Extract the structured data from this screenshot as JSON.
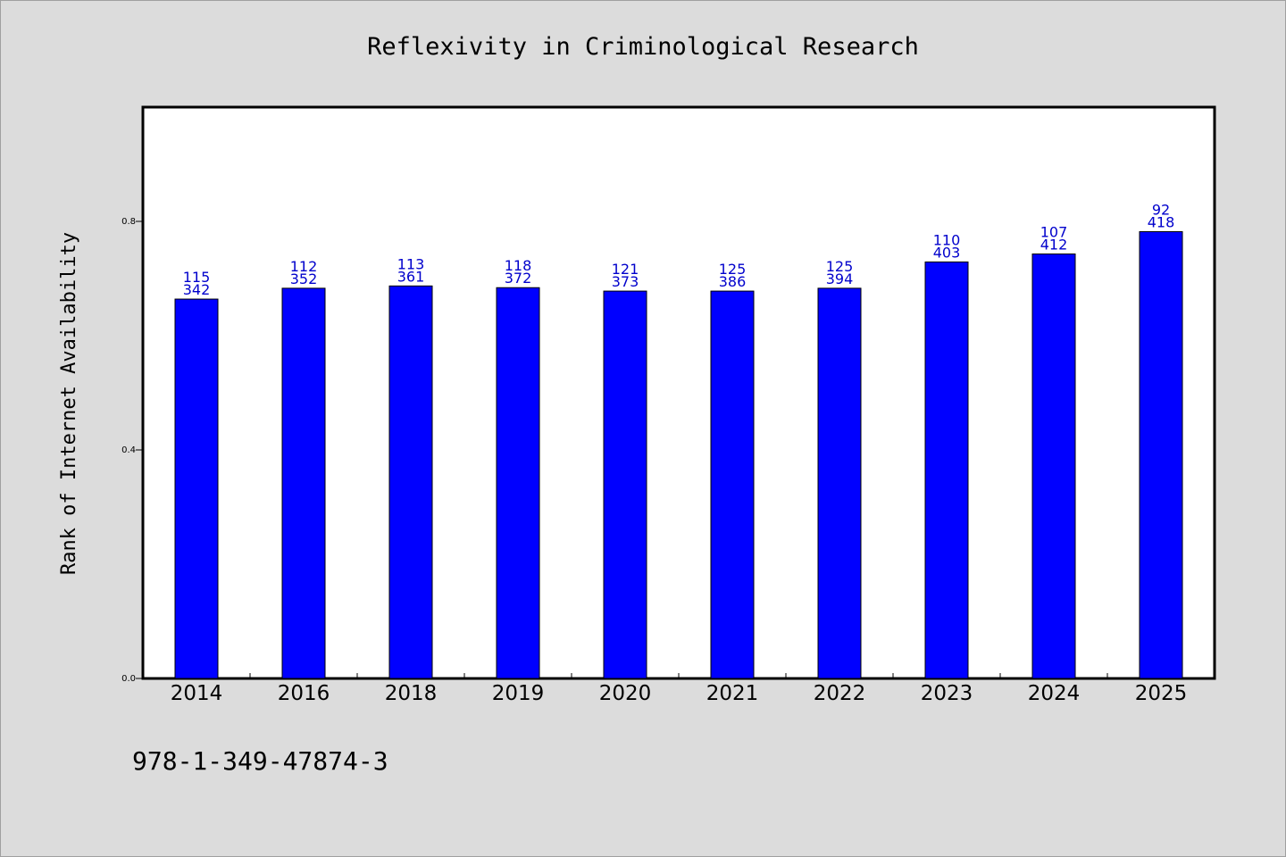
{
  "chart_data": {
    "type": "bar",
    "title": "Reflexivity in Criminological Research",
    "xlabel": "",
    "ylabel": "Rank of Internet Availability",
    "ylim": [
      0,
      1.0
    ],
    "yticks": [
      "0.0",
      "0.4",
      "0.8"
    ],
    "grid": false,
    "categories": [
      "2014",
      "2016",
      "2018",
      "2019",
      "2020",
      "2021",
      "2022",
      "2023",
      "2024",
      "2025"
    ],
    "values": [
      0.664,
      0.683,
      0.687,
      0.684,
      0.678,
      0.678,
      0.683,
      0.729,
      0.743,
      0.782
    ],
    "bar_color": "#0000ff",
    "label_color": "#0000cc",
    "annotations_top": [
      "115",
      "112",
      "113",
      "118",
      "121",
      "125",
      "125",
      "110",
      "107",
      "92"
    ],
    "annotations_bottom": [
      "342",
      "352",
      "361",
      "372",
      "373",
      "386",
      "394",
      "403",
      "412",
      "418"
    ]
  },
  "footer": {
    "isbn": "978-1-349-47874-3"
  }
}
